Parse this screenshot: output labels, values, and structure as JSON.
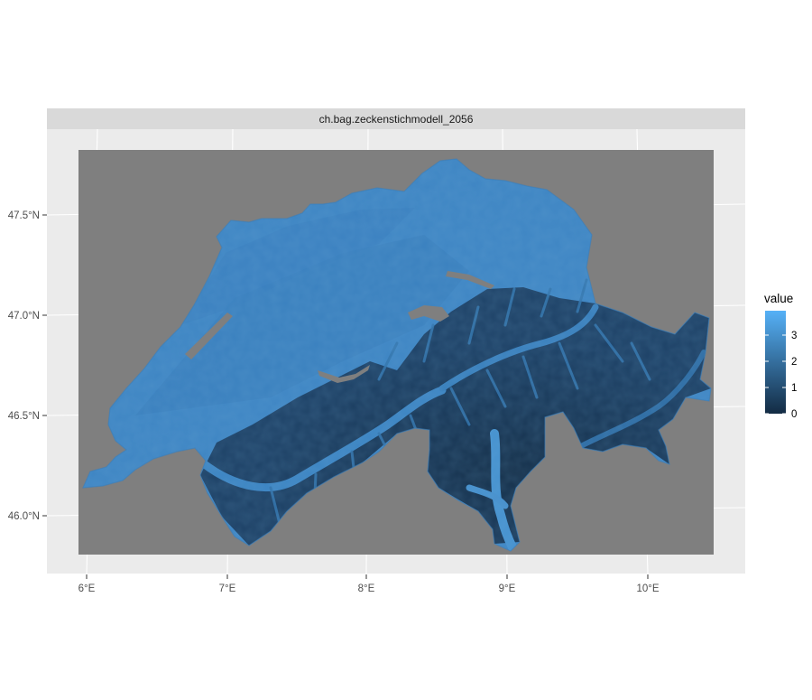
{
  "panel": {
    "strip_title": "ch.bag.zeckenstichmodell_2056"
  },
  "colors": {
    "panel_background": "#ebebeb",
    "strip_background": "#d9d9d9",
    "raster_nodata": "#7f7f7f",
    "gradient_low": "#132b43",
    "gradient_high": "#56b1f7",
    "graticule": "#ffffff",
    "axis_text": "#4d4d4d"
  },
  "map": {
    "region": "Switzerland",
    "variable": "value"
  },
  "chart_data": {
    "type": "heatmap",
    "title": "ch.bag.zeckenstichmodell_2056",
    "xlabel": "",
    "ylabel": "",
    "xlim": [
      5.95,
      10.5
    ],
    "ylim": [
      45.8,
      47.82
    ],
    "x_ticks": [
      6,
      7,
      8,
      9,
      10
    ],
    "x_tick_labels": [
      "6°E",
      "7°E",
      "8°E",
      "9°E",
      "10°E"
    ],
    "y_ticks": [
      46.0,
      46.5,
      47.0,
      47.5
    ],
    "y_tick_labels": [
      "46.0°N",
      "46.5°N",
      "47.0°N",
      "47.5°N"
    ],
    "grid": true,
    "legend": {
      "title": "value",
      "position": "right",
      "min": 0,
      "max": 3.9,
      "breaks": [
        0,
        1,
        2,
        3
      ],
      "break_labels": [
        "0",
        "1",
        "2",
        "3"
      ]
    }
  }
}
